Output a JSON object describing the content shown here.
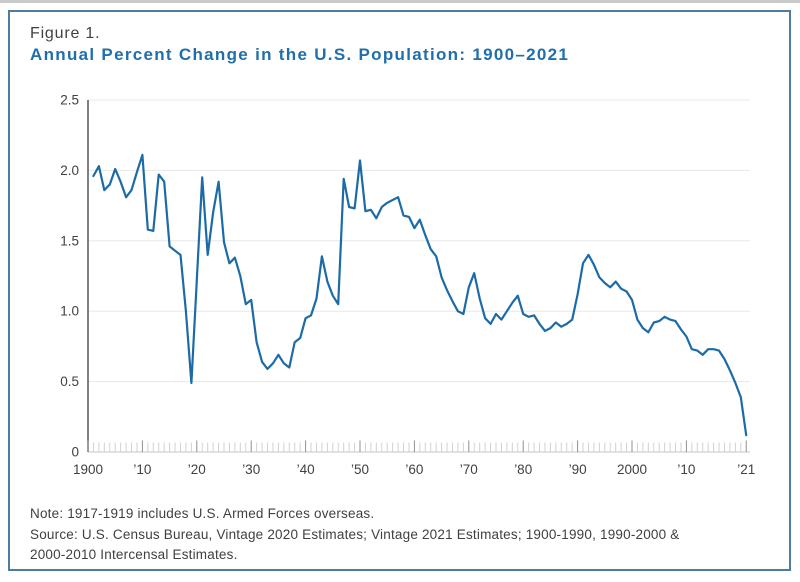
{
  "figure": {
    "label": "Figure 1.",
    "title": "Annual Percent Change in the U.S. Population: 1900–2021",
    "note": "Note: 1917-1919 includes U.S. Armed Forces overseas.",
    "source_lines": [
      "Source: U.S. Census Bureau, Vintage 2020 Estimates; Vintage 2021 Estimates; 1900-1990, 1990-2000 &",
      "2000-2010 Intercensal Estimates."
    ]
  },
  "colors": {
    "title_blue": "#1e6fac",
    "line_blue": "#1c6ba6",
    "card_border": "#4e7c9e",
    "axis_gray": "#55565a",
    "text_gray": "#414042",
    "gridline_gray": "#e8e8e8",
    "baseline_gray": "#c4c4c4",
    "minor_tick_gray": "#d2d2d2",
    "major_tick_gray": "#8f8f8f"
  },
  "chart_data": {
    "type": "line",
    "title": "Annual Percent Change in the U.S. Population: 1900–2021",
    "xlabel": "",
    "ylabel": "",
    "y_unit": "percent",
    "x_unit": "year",
    "x_start_year": 1901,
    "x_end_year": 2021,
    "x_axis_start": 1900,
    "ylim": [
      0,
      2.5
    ],
    "ytick_interval": 0.5,
    "grid": "horizontal",
    "legend": "none",
    "y_tick_labels": [
      {
        "value": 2.5,
        "label": "2.5"
      },
      {
        "value": 2.0,
        "label": "2.0"
      },
      {
        "value": 1.5,
        "label": "1.5"
      },
      {
        "value": 1.0,
        "label": "1.0"
      },
      {
        "value": 0.5,
        "label": "0.5"
      },
      {
        "value": 0.0,
        "label": "0"
      }
    ],
    "x_tick_labels": [
      {
        "year": 1900,
        "label": "1900"
      },
      {
        "year": 1910,
        "label": "’10"
      },
      {
        "year": 1920,
        "label": "’20"
      },
      {
        "year": 1930,
        "label": "’30"
      },
      {
        "year": 1940,
        "label": "’40"
      },
      {
        "year": 1950,
        "label": "’50"
      },
      {
        "year": 1960,
        "label": "’60"
      },
      {
        "year": 1970,
        "label": "’70"
      },
      {
        "year": 1980,
        "label": "’80"
      },
      {
        "year": 1990,
        "label": "’90"
      },
      {
        "year": 2000,
        "label": "2000"
      },
      {
        "year": 2010,
        "label": "’10"
      },
      {
        "year": 2021,
        "label": "’21"
      }
    ],
    "series": [
      {
        "name": "Annual percent change in U.S. population",
        "annual_values_1901_to_2021": [
          1.96,
          2.03,
          1.86,
          1.9,
          2.01,
          1.92,
          1.81,
          1.86,
          1.99,
          2.11,
          1.58,
          1.57,
          1.97,
          1.92,
          1.46,
          1.43,
          1.4,
          1.0,
          0.49,
          1.22,
          1.95,
          1.4,
          1.7,
          1.92,
          1.49,
          1.34,
          1.38,
          1.25,
          1.05,
          1.08,
          0.78,
          0.64,
          0.59,
          0.63,
          0.69,
          0.63,
          0.6,
          0.78,
          0.81,
          0.95,
          0.97,
          1.09,
          1.39,
          1.21,
          1.11,
          1.05,
          1.94,
          1.74,
          1.73,
          2.07,
          1.71,
          1.72,
          1.66,
          1.74,
          1.77,
          1.79,
          1.81,
          1.68,
          1.67,
          1.59,
          1.65,
          1.54,
          1.44,
          1.39,
          1.24,
          1.15,
          1.07,
          1.0,
          0.98,
          1.17,
          1.27,
          1.09,
          0.95,
          0.91,
          0.98,
          0.94,
          1.0,
          1.06,
          1.11,
          0.98,
          0.96,
          0.97,
          0.91,
          0.86,
          0.88,
          0.92,
          0.89,
          0.91,
          0.94,
          1.12,
          1.34,
          1.4,
          1.33,
          1.24,
          1.2,
          1.17,
          1.21,
          1.16,
          1.14,
          1.08,
          0.94,
          0.88,
          0.85,
          0.92,
          0.93,
          0.96,
          0.94,
          0.93,
          0.87,
          0.82,
          0.73,
          0.72,
          0.69,
          0.73,
          0.73,
          0.72,
          0.66,
          0.58,
          0.49,
          0.39,
          0.12
        ]
      }
    ]
  }
}
